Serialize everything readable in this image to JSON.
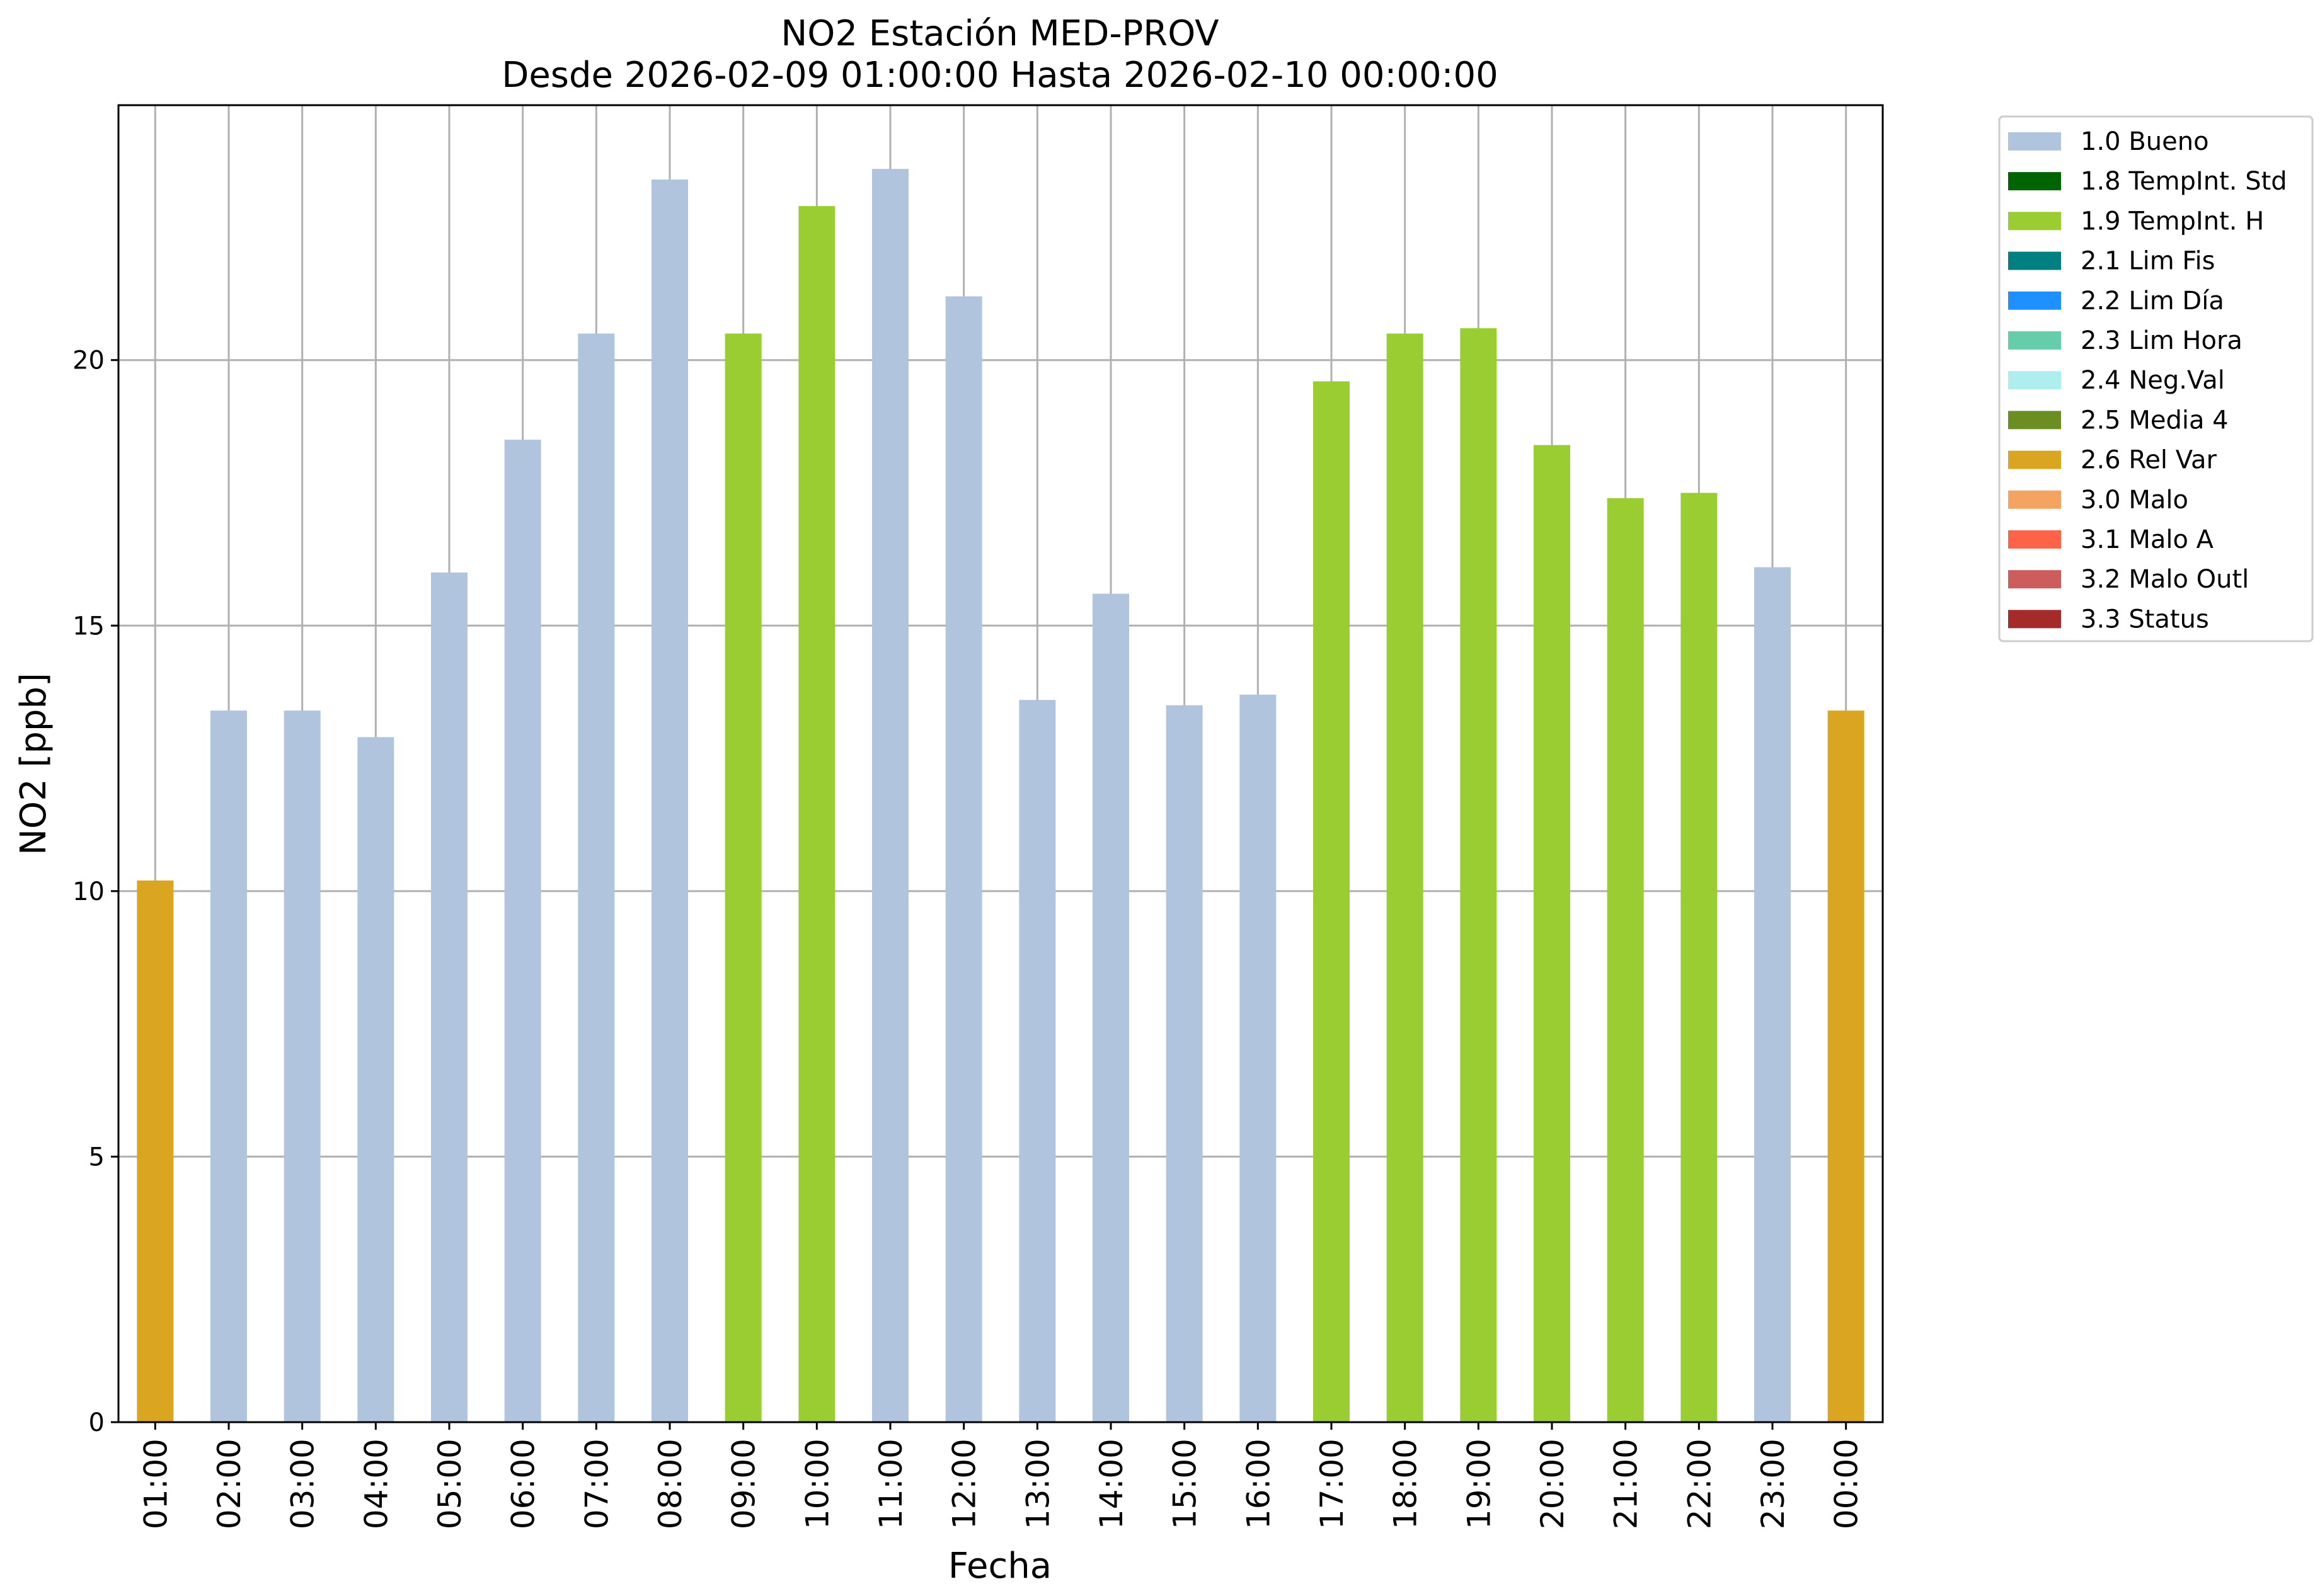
{
  "chart_data": {
    "type": "bar",
    "title": "NO2 Estación MED-PROV",
    "subtitle": "Desde 2026-02-09 01:00:00 Hasta 2026-02-10 00:00:00",
    "xlabel": "Fecha",
    "ylabel": "NO2 [ppb]",
    "ylim": [
      0,
      24.8
    ],
    "yticks": [
      "0",
      "5",
      "10",
      "15",
      "20"
    ],
    "grid": true,
    "legend_position": "outside-right-top",
    "categories": [
      "01:00",
      "02:00",
      "03:00",
      "04:00",
      "05:00",
      "06:00",
      "07:00",
      "08:00",
      "09:00",
      "10:00",
      "11:00",
      "12:00",
      "13:00",
      "14:00",
      "15:00",
      "16:00",
      "17:00",
      "18:00",
      "19:00",
      "20:00",
      "21:00",
      "22:00",
      "23:00",
      "00:00"
    ],
    "values": [
      10.2,
      13.4,
      13.4,
      12.9,
      16.0,
      18.5,
      20.5,
      23.4,
      20.5,
      22.9,
      23.6,
      21.2,
      13.6,
      15.6,
      13.5,
      13.7,
      19.6,
      20.5,
      20.6,
      18.4,
      17.4,
      17.5,
      16.1,
      13.4
    ],
    "flags": [
      "2.6 Rel Var",
      "1.0 Bueno",
      "1.0 Bueno",
      "1.0 Bueno",
      "1.0 Bueno",
      "1.0 Bueno",
      "1.0 Bueno",
      "1.0 Bueno",
      "1.9 TempInt. H",
      "1.9 TempInt. H",
      "1.0 Bueno",
      "1.0 Bueno",
      "1.0 Bueno",
      "1.0 Bueno",
      "1.0 Bueno",
      "1.0 Bueno",
      "1.9 TempInt. H",
      "1.9 TempInt. H",
      "1.9 TempInt. H",
      "1.9 TempInt. H",
      "1.9 TempInt. H",
      "1.9 TempInt. H",
      "1.0 Bueno",
      "2.6 Rel Var"
    ],
    "legend": [
      {
        "label": "1.0 Bueno",
        "color": "#b0c4de"
      },
      {
        "label": "1.8 TempInt. Std",
        "color": "#006400"
      },
      {
        "label": "1.9 TempInt. H",
        "color": "#9acd32"
      },
      {
        "label": "2.1 Lim Fis",
        "color": "#008080"
      },
      {
        "label": "2.2 Lim Día",
        "color": "#1e90ff"
      },
      {
        "label": "2.3 Lim Hora",
        "color": "#66cdaa"
      },
      {
        "label": "2.4 Neg.Val",
        "color": "#afeeee"
      },
      {
        "label": "2.5 Media 4",
        "color": "#6b8e23"
      },
      {
        "label": "2.6 Rel Var",
        "color": "#daa520"
      },
      {
        "label": "3.0 Malo",
        "color": "#f4a460"
      },
      {
        "label": "3.1 Malo A",
        "color": "#ff6347"
      },
      {
        "label": "3.2 Malo Outl",
        "color": "#cd5c5c"
      },
      {
        "label": "3.3 Status",
        "color": "#a52a2a"
      }
    ]
  }
}
